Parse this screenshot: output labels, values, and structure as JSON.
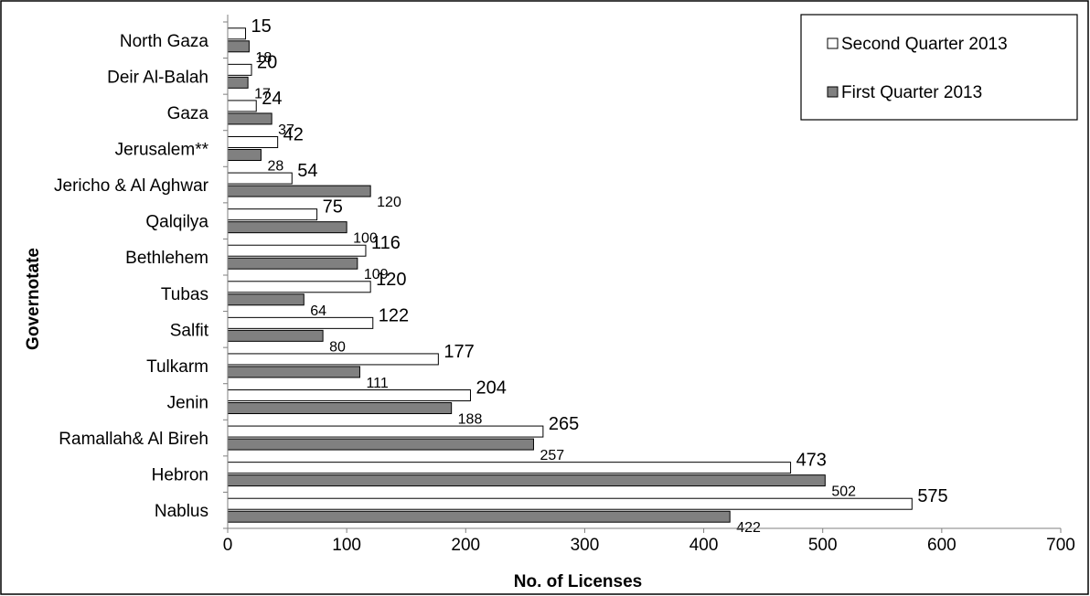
{
  "chart_data": {
    "type": "bar",
    "orientation": "horizontal",
    "categories": [
      "North Gaza",
      "Deir Al-Balah",
      "Gaza",
      "Jerusalem**",
      "Jericho & Al Aghwar",
      "Qalqilya",
      "Bethlehem",
      "Tubas",
      "Salfit",
      "Tulkarm",
      "Jenin",
      "Ramallah& Al Bireh",
      "Hebron",
      "Nablus"
    ],
    "series": [
      {
        "name": "Second Quarter 2013",
        "values": [
          15,
          20,
          24,
          42,
          54,
          75,
          116,
          120,
          122,
          177,
          204,
          265,
          473,
          575
        ],
        "color": "#ffffff"
      },
      {
        "name": "First Quarter 2013",
        "values": [
          18,
          17,
          37,
          28,
          120,
          100,
          109,
          64,
          80,
          111,
          188,
          257,
          502,
          422
        ],
        "color": "#808080"
      }
    ],
    "xlabel": "No. of Licenses",
    "ylabel": "Governotate",
    "xlim": [
      0,
      700
    ],
    "xticks": [
      "0",
      "100",
      "200",
      "300",
      "400",
      "500",
      "600",
      "700"
    ],
    "legend_position": "top-right",
    "grid": false
  }
}
